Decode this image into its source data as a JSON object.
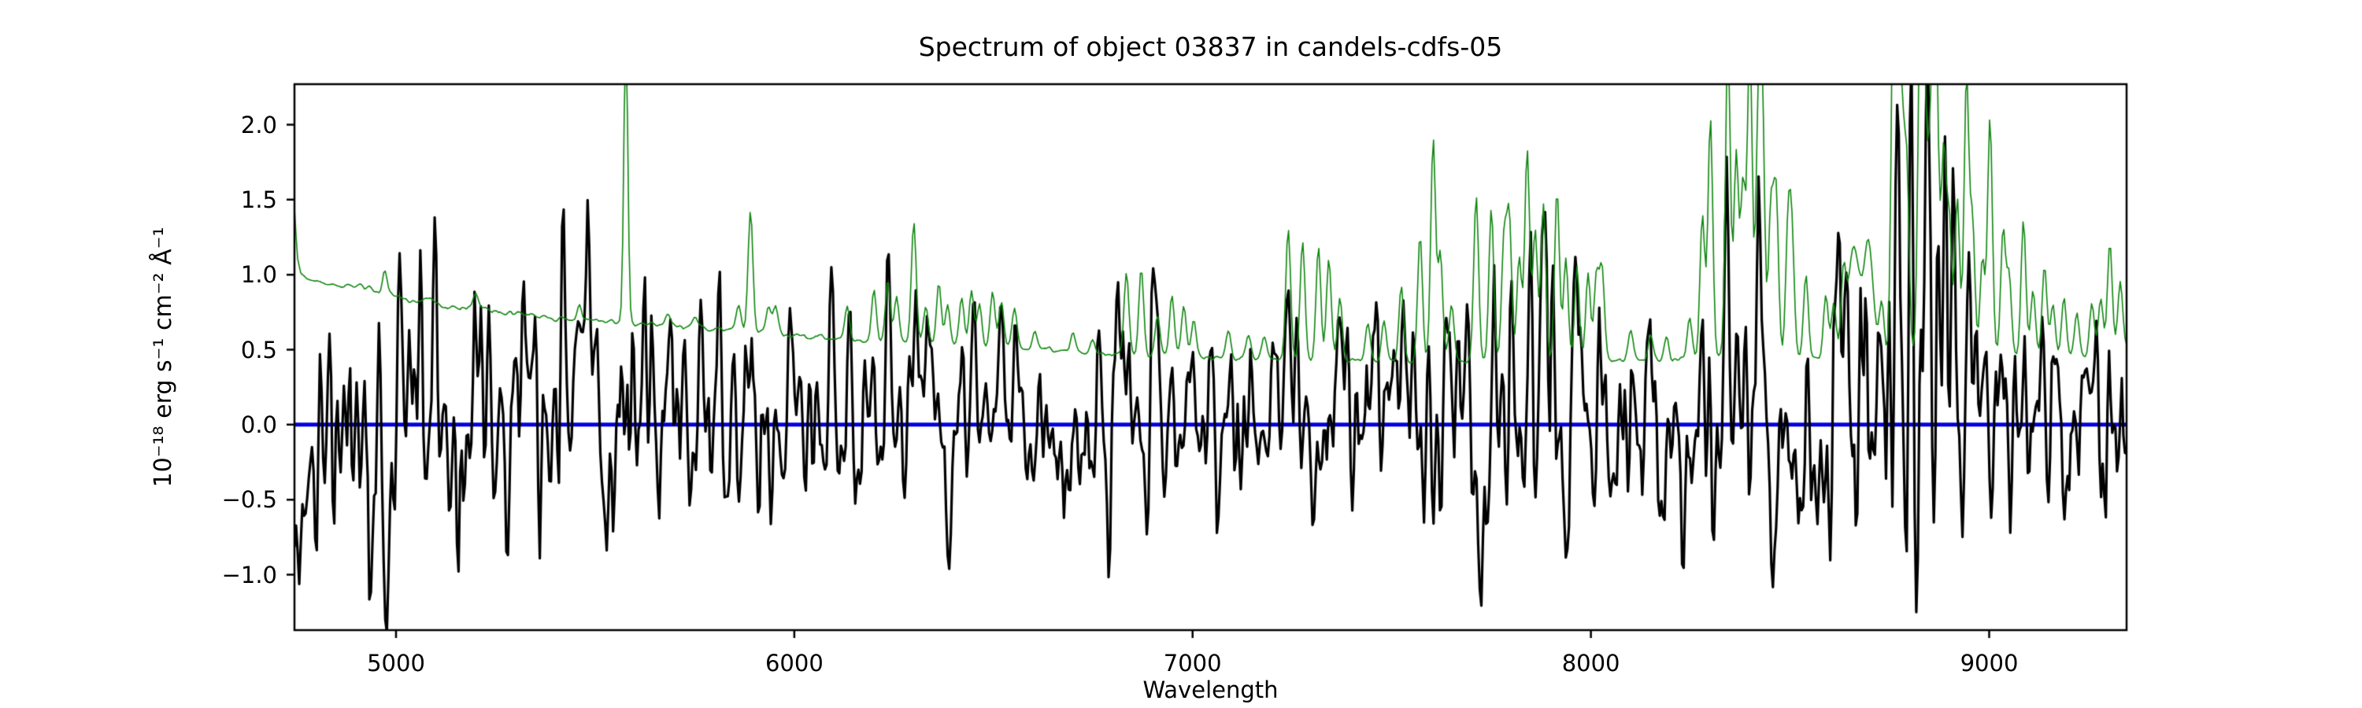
{
  "figure": {
    "background": "#ffffff"
  },
  "chart_data": {
    "type": "line",
    "title": "Spectrum of object 03837 in candels-cdfs-05",
    "xlabel": "Wavelength",
    "ylabel": "10⁻¹⁸ erg s⁻¹ cm⁻² Å⁻¹",
    "xlim": [
      4745,
      9345
    ],
    "ylim": [
      -1.37,
      2.27
    ],
    "grid": false,
    "legend": null,
    "xticks": [
      5000,
      6000,
      7000,
      8000,
      9000
    ],
    "xtick_labels": [
      "5000",
      "6000",
      "7000",
      "8000",
      "9000"
    ],
    "yticks": [
      2.0,
      1.5,
      1.0,
      0.5,
      0.0,
      -0.5,
      -1.0
    ],
    "ytick_labels": [
      "2.0",
      "1.5",
      "1.0",
      "0.5",
      "0.0",
      "−0.5",
      "−1.0"
    ],
    "sample_step_angstrom": 4,
    "series": [
      {
        "id": "zero_line",
        "name": "zero flux baseline",
        "type": "hline",
        "y": 0.0,
        "color": "#0000e0",
        "linewidth": 5,
        "zorder": 1
      },
      {
        "id": "flux",
        "name": "object flux spectrum (noisy, around zero)",
        "type": "noisy-line",
        "color": "#000000",
        "linewidth": 3.2,
        "zorder": 2,
        "noise_seed": 11,
        "baseline": 0.0,
        "noise_std_profile": [
          [
            4745,
            0.4
          ],
          [
            4900,
            0.4
          ],
          [
            5100,
            0.36
          ],
          [
            5400,
            0.32
          ],
          [
            5800,
            0.3
          ],
          [
            6200,
            0.28
          ],
          [
            6600,
            0.27
          ],
          [
            7000,
            0.27
          ],
          [
            7300,
            0.29
          ],
          [
            7600,
            0.32
          ],
          [
            7800,
            0.36
          ],
          [
            8000,
            0.33
          ],
          [
            8200,
            0.33
          ],
          [
            8400,
            0.36
          ],
          [
            8600,
            0.4
          ],
          [
            8720,
            0.55
          ],
          [
            8800,
            0.7
          ],
          [
            8880,
            0.6
          ],
          [
            8960,
            0.45
          ],
          [
            9100,
            0.38
          ],
          [
            9250,
            0.38
          ],
          [
            9344,
            0.4
          ]
        ],
        "bias_profile": [
          [
            4745,
            -0.1
          ],
          [
            5000,
            -0.05
          ],
          [
            5400,
            0.02
          ],
          [
            6500,
            0.0
          ],
          [
            7600,
            0.08
          ],
          [
            7900,
            0.1
          ],
          [
            8300,
            0.05
          ],
          [
            8700,
            0.15
          ],
          [
            8850,
            0.1
          ],
          [
            9000,
            0.02
          ],
          [
            9344,
            0.02
          ]
        ],
        "spike_sigma_default": 5,
        "spikes": [
          [
            4770,
            -0.55
          ],
          [
            4800,
            -0.75
          ],
          [
            4870,
            0.55
          ],
          [
            4935,
            -1.18
          ],
          [
            4955,
            0.65
          ],
          [
            4975,
            -1.15
          ],
          [
            5010,
            0.75
          ],
          [
            5060,
            0.85
          ],
          [
            5095,
            0.82
          ],
          [
            5130,
            -0.65
          ],
          [
            5235,
            0.88
          ],
          [
            5280,
            -0.7
          ],
          [
            5320,
            0.86
          ],
          [
            5360,
            -0.6
          ],
          [
            5420,
            0.65
          ],
          [
            5482,
            0.75
          ],
          [
            5530,
            -0.55
          ],
          [
            5622,
            1.05
          ],
          [
            5660,
            -0.6
          ],
          [
            5720,
            0.6
          ],
          [
            5770,
            0.74
          ],
          [
            5820,
            -0.55
          ],
          [
            5890,
            0.55
          ],
          [
            5940,
            -0.5
          ],
          [
            5990,
            0.8
          ],
          [
            6090,
            0.6
          ],
          [
            6140,
            0.55
          ],
          [
            6236,
            0.85
          ],
          [
            6300,
            0.8
          ],
          [
            6390,
            -0.75
          ],
          [
            6450,
            0.65
          ],
          [
            6520,
            0.6
          ],
          [
            6680,
            -0.6
          ],
          [
            6790,
            -0.65
          ],
          [
            6840,
            0.6
          ],
          [
            6930,
            -0.5
          ],
          [
            6990,
            0.6
          ],
          [
            7060,
            -0.55
          ],
          [
            7240,
            0.65
          ],
          [
            7300,
            -0.55
          ],
          [
            7400,
            -0.5
          ],
          [
            7460,
            0.55
          ],
          [
            7580,
            -0.5
          ],
          [
            7640,
            0.55
          ],
          [
            7690,
            0.9
          ],
          [
            7719,
            -1.02
          ],
          [
            7760,
            0.7
          ],
          [
            7800,
            0.8
          ],
          [
            7830,
            -0.68
          ],
          [
            7850,
            1.2
          ],
          [
            7880,
            0.9
          ],
          [
            7905,
            1.1
          ],
          [
            7937,
            -0.71
          ],
          [
            7960,
            0.85
          ],
          [
            8000,
            -0.6
          ],
          [
            8150,
            0.55
          ],
          [
            8230,
            -0.95
          ],
          [
            8280,
            0.7
          ],
          [
            8340,
            1.4
          ],
          [
            8420,
            1.45
          ],
          [
            8460,
            -0.7
          ],
          [
            8530,
            -0.89
          ],
          [
            8601,
            -0.58
          ],
          [
            8640,
            0.85
          ],
          [
            8680,
            0.75
          ],
          [
            8750,
            1.3
          ],
          [
            8770,
            1.6
          ],
          [
            8790,
            -0.8
          ],
          [
            8805,
            2.05
          ],
          [
            8820,
            -1.1
          ],
          [
            8845,
            2.1
          ],
          [
            8858,
            -0.9
          ],
          [
            8872,
            1.9
          ],
          [
            8890,
            1.3
          ],
          [
            8910,
            1.5
          ],
          [
            8930,
            -0.7
          ],
          [
            8950,
            1.2
          ],
          [
            8980,
            0.8
          ],
          [
            9040,
            0.92
          ],
          [
            9100,
            -0.5
          ],
          [
            9140,
            0.6
          ],
          [
            9200,
            0.55
          ],
          [
            9240,
            0.75
          ],
          [
            9300,
            0.6
          ]
        ]
      },
      {
        "id": "sky_noise",
        "name": "noise / sky spectrum (green)",
        "type": "continuum-plus-spikes",
        "color": "#0e860e",
        "linewidth": 1.6,
        "zorder": 3,
        "jitter": 0.013,
        "continuum": [
          [
            4745,
            1.42
          ],
          [
            4752,
            1.1
          ],
          [
            4762,
            1.0
          ],
          [
            4790,
            0.96
          ],
          [
            4830,
            0.94
          ],
          [
            4870,
            0.92
          ],
          [
            4915,
            0.93
          ],
          [
            4950,
            0.89
          ],
          [
            5000,
            0.86
          ],
          [
            5050,
            0.82
          ],
          [
            5085,
            0.84
          ],
          [
            5120,
            0.79
          ],
          [
            5160,
            0.77
          ],
          [
            5205,
            0.79
          ],
          [
            5250,
            0.75
          ],
          [
            5300,
            0.74
          ],
          [
            5350,
            0.72
          ],
          [
            5400,
            0.71
          ],
          [
            5450,
            0.7
          ],
          [
            5500,
            0.69
          ],
          [
            5560,
            0.68
          ],
          [
            5610,
            0.67
          ],
          [
            5660,
            0.665
          ],
          [
            5710,
            0.66
          ],
          [
            5760,
            0.65
          ],
          [
            5810,
            0.64
          ],
          [
            5860,
            0.63
          ],
          [
            5920,
            0.615
          ],
          [
            5980,
            0.6
          ],
          [
            6050,
            0.585
          ],
          [
            6120,
            0.57
          ],
          [
            6200,
            0.555
          ],
          [
            6280,
            0.545
          ],
          [
            6360,
            0.535
          ],
          [
            6450,
            0.525
          ],
          [
            6550,
            0.51
          ],
          [
            6650,
            0.495
          ],
          [
            6750,
            0.48
          ],
          [
            6850,
            0.465
          ],
          [
            6950,
            0.455
          ],
          [
            7050,
            0.445
          ],
          [
            7150,
            0.44
          ],
          [
            7250,
            0.435
          ],
          [
            7350,
            0.43
          ],
          [
            7450,
            0.425
          ],
          [
            7550,
            0.42
          ],
          [
            7650,
            0.42
          ],
          [
            7750,
            0.42
          ],
          [
            7850,
            0.42
          ],
          [
            7950,
            0.42
          ],
          [
            8050,
            0.43
          ],
          [
            8150,
            0.435
          ],
          [
            8250,
            0.44
          ],
          [
            8350,
            0.45
          ],
          [
            8450,
            0.45
          ],
          [
            8550,
            0.44
          ],
          [
            8650,
            0.45
          ],
          [
            8750,
            0.455
          ],
          [
            8850,
            0.46
          ],
          [
            8950,
            0.455
          ],
          [
            9050,
            0.45
          ],
          [
            9150,
            0.44
          ],
          [
            9250,
            0.45
          ],
          [
            9344,
            0.52
          ]
        ],
        "spike_sigma_default": 6,
        "spikes": [
          [
            4972,
            1.02
          ],
          [
            5199,
            0.87
          ],
          [
            5461,
            0.8
          ],
          [
            5577,
            2.6,
            5
          ],
          [
            5683,
            0.74
          ],
          [
            5752,
            0.72
          ],
          [
            5860,
            0.8
          ],
          [
            5890,
            1.43
          ],
          [
            5935,
            0.79
          ],
          [
            5953,
            0.8
          ],
          [
            6133,
            0.8
          ],
          [
            6200,
            0.9
          ],
          [
            6235,
            0.96
          ],
          [
            6257,
            0.85
          ],
          [
            6300,
            1.35
          ],
          [
            6330,
            0.8
          ],
          [
            6363,
            0.95
          ],
          [
            6385,
            0.8
          ],
          [
            6420,
            0.85
          ],
          [
            6445,
            0.88
          ],
          [
            6465,
            0.8
          ],
          [
            6498,
            0.88
          ],
          [
            6520,
            0.82
          ],
          [
            6553,
            0.78
          ],
          [
            6604,
            0.62
          ],
          [
            6700,
            0.6
          ],
          [
            6750,
            0.57
          ],
          [
            6834,
            1.0
          ],
          [
            6871,
            1.05
          ],
          [
            6912,
            0.73
          ],
          [
            6948,
            0.85
          ],
          [
            6978,
            0.8
          ],
          [
            7003,
            0.7
          ],
          [
            7090,
            0.62
          ],
          [
            7140,
            0.6
          ],
          [
            7180,
            0.58
          ],
          [
            7240,
            1.3
          ],
          [
            7276,
            1.22
          ],
          [
            7316,
            1.18
          ],
          [
            7342,
            1.1
          ],
          [
            7370,
            0.85
          ],
          [
            7440,
            0.65
          ],
          [
            7480,
            0.7
          ],
          [
            7524,
            0.92
          ],
          [
            7571,
            1.28
          ],
          [
            7604,
            1.92
          ],
          [
            7622,
            1.15
          ],
          [
            7650,
            0.8
          ],
          [
            7712,
            1.52
          ],
          [
            7750,
            1.45
          ],
          [
            7782,
            1.25
          ],
          [
            7795,
            1.38
          ],
          [
            7820,
            1.12
          ],
          [
            7840,
            1.85
          ],
          [
            7860,
            1.3
          ],
          [
            7881,
            1.47
          ],
          [
            7915,
            1.57
          ],
          [
            7937,
            1.12
          ],
          [
            7965,
            1.05
          ],
          [
            7993,
            1.0
          ],
          [
            8014,
            1.0
          ],
          [
            8028,
            1.03
          ],
          [
            8100,
            0.62
          ],
          [
            8150,
            0.6
          ],
          [
            8190,
            0.58
          ],
          [
            8248,
            0.7
          ],
          [
            8280,
            1.4
          ],
          [
            8300,
            2.05
          ],
          [
            8344,
            2.6
          ],
          [
            8365,
            1.8
          ],
          [
            8382,
            1.6
          ],
          [
            8399,
            2.6
          ],
          [
            8420,
            1.9
          ],
          [
            8430,
            2.1
          ],
          [
            8452,
            1.45
          ],
          [
            8465,
            1.55
          ],
          [
            8495,
            1.3
          ],
          [
            8505,
            1.2
          ],
          [
            8540,
            1.0
          ],
          [
            8590,
            0.85
          ],
          [
            8610,
            0.8
          ],
          [
            8634,
            0.95
          ],
          [
            8660,
            1.18,
            14
          ],
          [
            8697,
            1.2,
            12
          ],
          [
            8730,
            0.8
          ],
          [
            8760,
            2.6
          ],
          [
            8767,
            2.3
          ],
          [
            8780,
            2.0
          ],
          [
            8793,
            1.7
          ],
          [
            8827,
            2.6
          ],
          [
            8836,
            2.2
          ],
          [
            8850,
            1.6
          ],
          [
            8862,
            2.6
          ],
          [
            8870,
            1.45
          ],
          [
            8886,
            1.8
          ],
          [
            8900,
            1.35
          ],
          [
            8920,
            1.5
          ],
          [
            8943,
            2.3
          ],
          [
            8958,
            1.35
          ],
          [
            8983,
            1.1
          ],
          [
            9002,
            2.05
          ],
          [
            9035,
            1.3
          ],
          [
            9050,
            1.0
          ],
          [
            9086,
            1.35
          ],
          [
            9110,
            0.9
          ],
          [
            9139,
            1.06
          ],
          [
            9160,
            0.8
          ],
          [
            9188,
            0.85
          ],
          [
            9220,
            0.75
          ],
          [
            9258,
            0.8
          ],
          [
            9280,
            0.85
          ],
          [
            9303,
            1.22
          ],
          [
            9329,
            0.95
          ]
        ]
      }
    ],
    "axes_style": {
      "spine_color": "#000000",
      "spine_width": 2.5,
      "tick_length": 10,
      "tick_width": 2.5
    }
  }
}
